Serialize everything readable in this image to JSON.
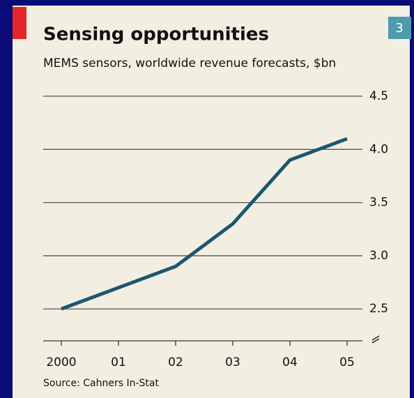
{
  "chart_data": {
    "type": "line",
    "title": "Sensing opportunities",
    "subtitle": "MEMS sensors, worldwide revenue forecasts, $bn",
    "badge": "3",
    "source": "Source: Cahners In-Stat",
    "categories": [
      "2000",
      "01",
      "02",
      "03",
      "04",
      "05"
    ],
    "series": [
      {
        "name": "MEMS sensors revenue",
        "color": "#1d5670",
        "values": [
          2.5,
          2.7,
          2.9,
          3.3,
          3.9,
          4.1
        ]
      }
    ],
    "ylim": [
      2.2,
      4.5
    ],
    "yticks": [
      {
        "value": 4.5,
        "label": "4.5"
      },
      {
        "value": 4.0,
        "label": "4.0"
      },
      3.5,
      {
        "value": 3.0,
        "label": "3.0"
      },
      2.5
    ],
    "grid": true,
    "axis_side": "right"
  }
}
